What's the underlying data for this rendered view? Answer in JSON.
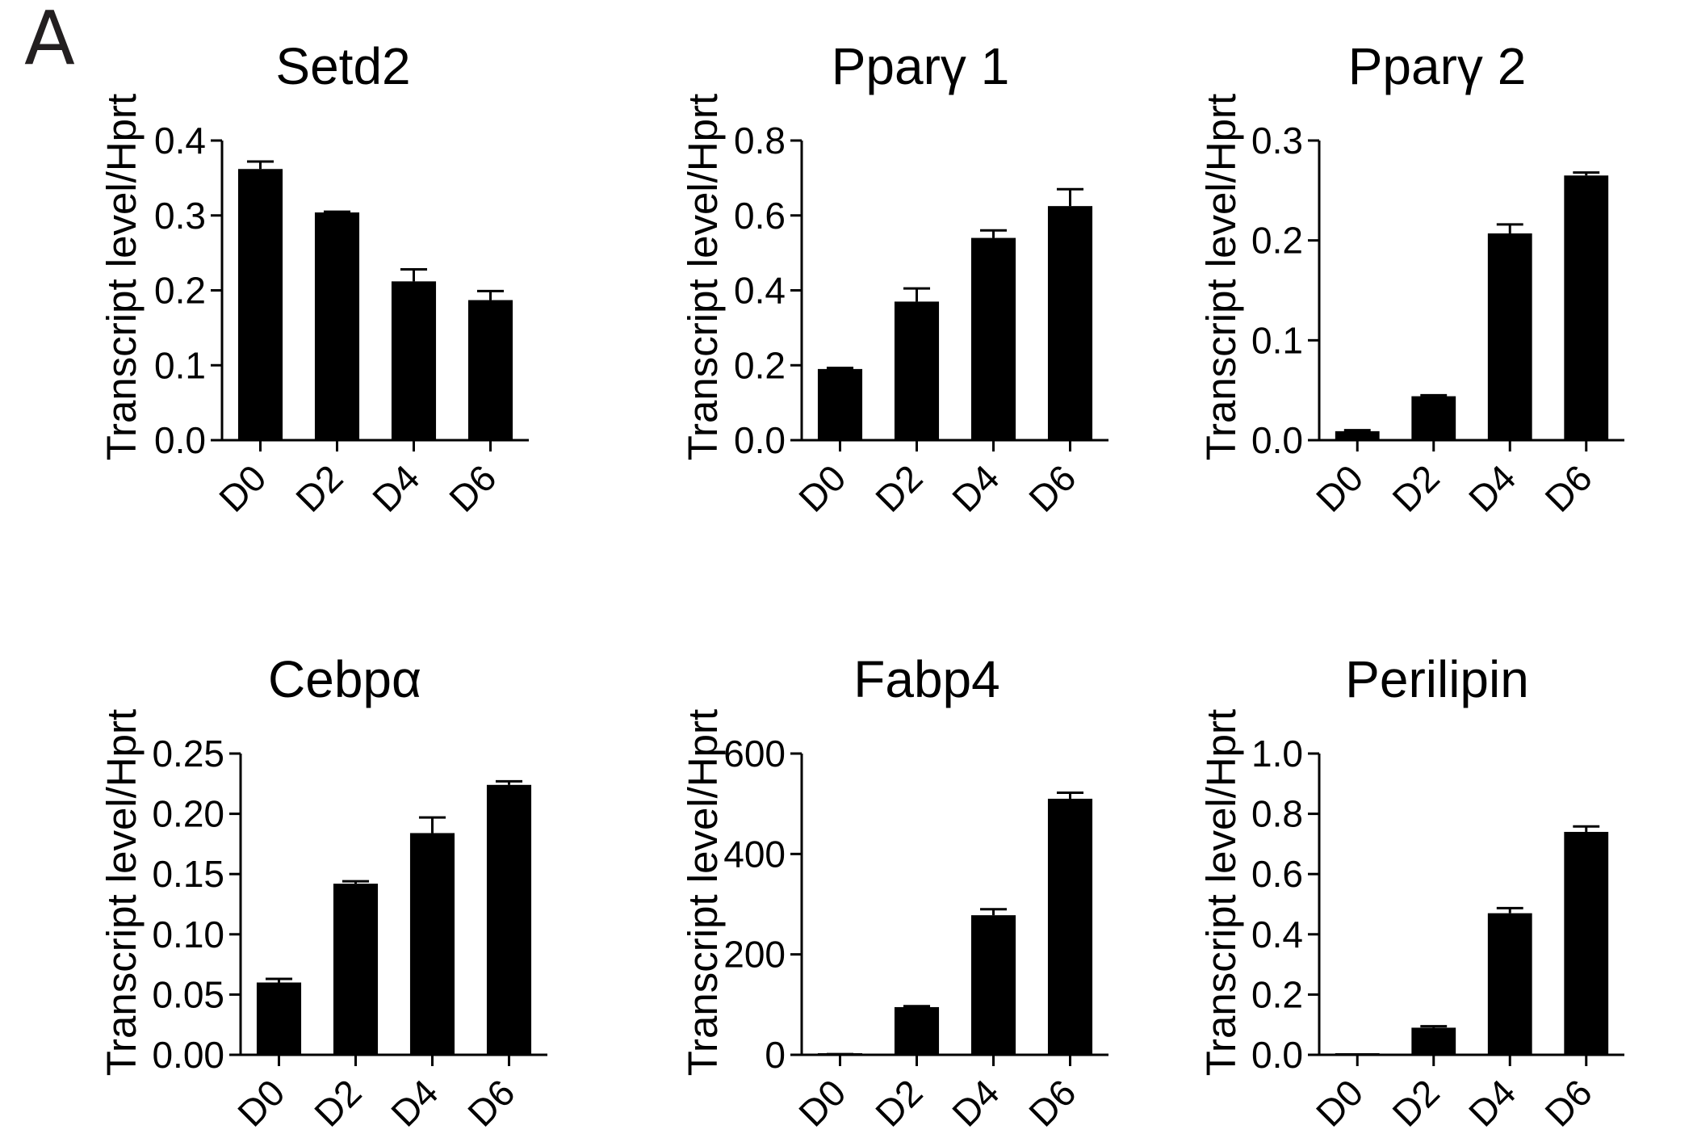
{
  "panel_label": "A",
  "chart_data": [
    {
      "type": "bar",
      "title": "Setd2",
      "ylabel": "Transcript level/Hprt",
      "xlabel": "",
      "categories": [
        "D0",
        "D2",
        "D4",
        "D6"
      ],
      "values": [
        0.362,
        0.304,
        0.212,
        0.187
      ],
      "errors": [
        0.01,
        0.001,
        0.016,
        0.012
      ],
      "ylim": [
        0,
        0.4
      ],
      "yticks": [
        0.0,
        0.1,
        0.2,
        0.3,
        0.4
      ],
      "ytick_labels": [
        "0.0",
        "0.1",
        "0.2",
        "0.3",
        "0.4"
      ]
    },
    {
      "type": "bar",
      "title": "Pparγ 1",
      "ylabel": "Transcript level/Hprt",
      "xlabel": "",
      "categories": [
        "D0",
        "D2",
        "D4",
        "D6"
      ],
      "values": [
        0.19,
        0.37,
        0.54,
        0.625
      ],
      "errors": [
        0.003,
        0.035,
        0.02,
        0.045
      ],
      "ylim": [
        0,
        0.8
      ],
      "yticks": [
        0.0,
        0.2,
        0.4,
        0.6,
        0.8
      ],
      "ytick_labels": [
        "0.0",
        "0.2",
        "0.4",
        "0.6",
        "0.8"
      ]
    },
    {
      "type": "bar",
      "title": "Pparγ 2",
      "ylabel": "Transcript level/Hprt",
      "xlabel": "",
      "categories": [
        "D0",
        "D2",
        "D4",
        "D6"
      ],
      "values": [
        0.009,
        0.044,
        0.207,
        0.265
      ],
      "errors": [
        0.001,
        0.001,
        0.009,
        0.003
      ],
      "ylim": [
        0,
        0.3
      ],
      "yticks": [
        0.0,
        0.1,
        0.2,
        0.3
      ],
      "ytick_labels": [
        "0.0",
        "0.1",
        "0.2",
        "0.3"
      ]
    },
    {
      "type": "bar",
      "title": "Cebpα",
      "ylabel": "Transcript level/Hprt",
      "xlabel": "",
      "categories": [
        "D0",
        "D2",
        "D4",
        "D6"
      ],
      "values": [
        0.06,
        0.142,
        0.184,
        0.224
      ],
      "errors": [
        0.003,
        0.002,
        0.013,
        0.003
      ],
      "ylim": [
        0,
        0.25
      ],
      "yticks": [
        0.0,
        0.05,
        0.1,
        0.15,
        0.2,
        0.25
      ],
      "ytick_labels": [
        "0.00",
        "0.05",
        "0.10",
        "0.15",
        "0.20",
        "0.25"
      ]
    },
    {
      "type": "bar",
      "title": "Fabp4",
      "ylabel": "Transcript level/Hprt",
      "xlabel": "",
      "categories": [
        "D0",
        "D2",
        "D4",
        "D6"
      ],
      "values": [
        1,
        95,
        278,
        510
      ],
      "errors": [
        0.5,
        2,
        12,
        12
      ],
      "ylim": [
        0,
        600
      ],
      "yticks": [
        0,
        200,
        400,
        600
      ],
      "ytick_labels": [
        "0",
        "200",
        "400",
        "600"
      ]
    },
    {
      "type": "bar",
      "title": "Perilipin",
      "ylabel": "Transcript level/Hprt",
      "xlabel": "",
      "categories": [
        "D0",
        "D2",
        "D4",
        "D6"
      ],
      "values": [
        0.0,
        0.09,
        0.47,
        0.74
      ],
      "errors": [
        0.0,
        0.005,
        0.017,
        0.018
      ],
      "ylim": [
        0,
        1.0
      ],
      "yticks": [
        0.0,
        0.2,
        0.4,
        0.6,
        0.8,
        1.0
      ],
      "ytick_labels": [
        "0.0",
        "0.2",
        "0.4",
        "0.6",
        "0.8",
        "1.0"
      ]
    }
  ]
}
